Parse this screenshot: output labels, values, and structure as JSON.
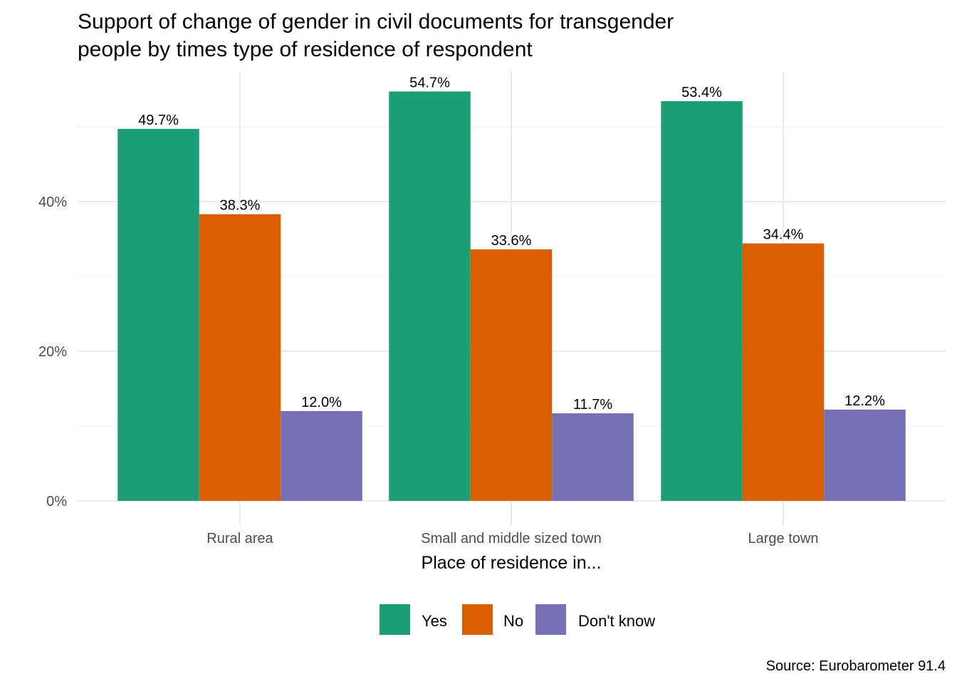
{
  "chart_data": {
    "type": "bar",
    "title": "Support of change of gender in civil documents for transgender people by times type of residence of respondent",
    "title_lines": [
      "Support of change of gender in civil documents for transgender",
      "people by times type of residence of respondent"
    ],
    "xlabel": "Place of residence in...",
    "ylabel": "",
    "caption": "Source: Eurobarometer 91.4",
    "categories": [
      "Rural area",
      "Small and middle sized town",
      "Large town"
    ],
    "series": [
      {
        "name": "Yes",
        "color": "#1b9e77",
        "values": [
          49.7,
          54.7,
          53.4
        ],
        "labels": [
          "49.7%",
          "54.7%",
          "53.4%"
        ]
      },
      {
        "name": "No",
        "color": "#d95f02",
        "values": [
          38.3,
          33.6,
          34.4
        ],
        "labels": [
          "38.3%",
          "33.6%",
          "34.4%"
        ]
      },
      {
        "name": "Don't know",
        "color": "#7570b3",
        "values": [
          12.0,
          11.7,
          12.2
        ],
        "labels": [
          "12.0%",
          "11.7%",
          "12.2%"
        ]
      }
    ],
    "y_ticks": [
      0,
      20,
      40
    ],
    "y_tick_labels": [
      "0%",
      "20%",
      "40%"
    ],
    "ylim": [
      0,
      57.4
    ],
    "grid": true,
    "legend_position": "bottom"
  }
}
